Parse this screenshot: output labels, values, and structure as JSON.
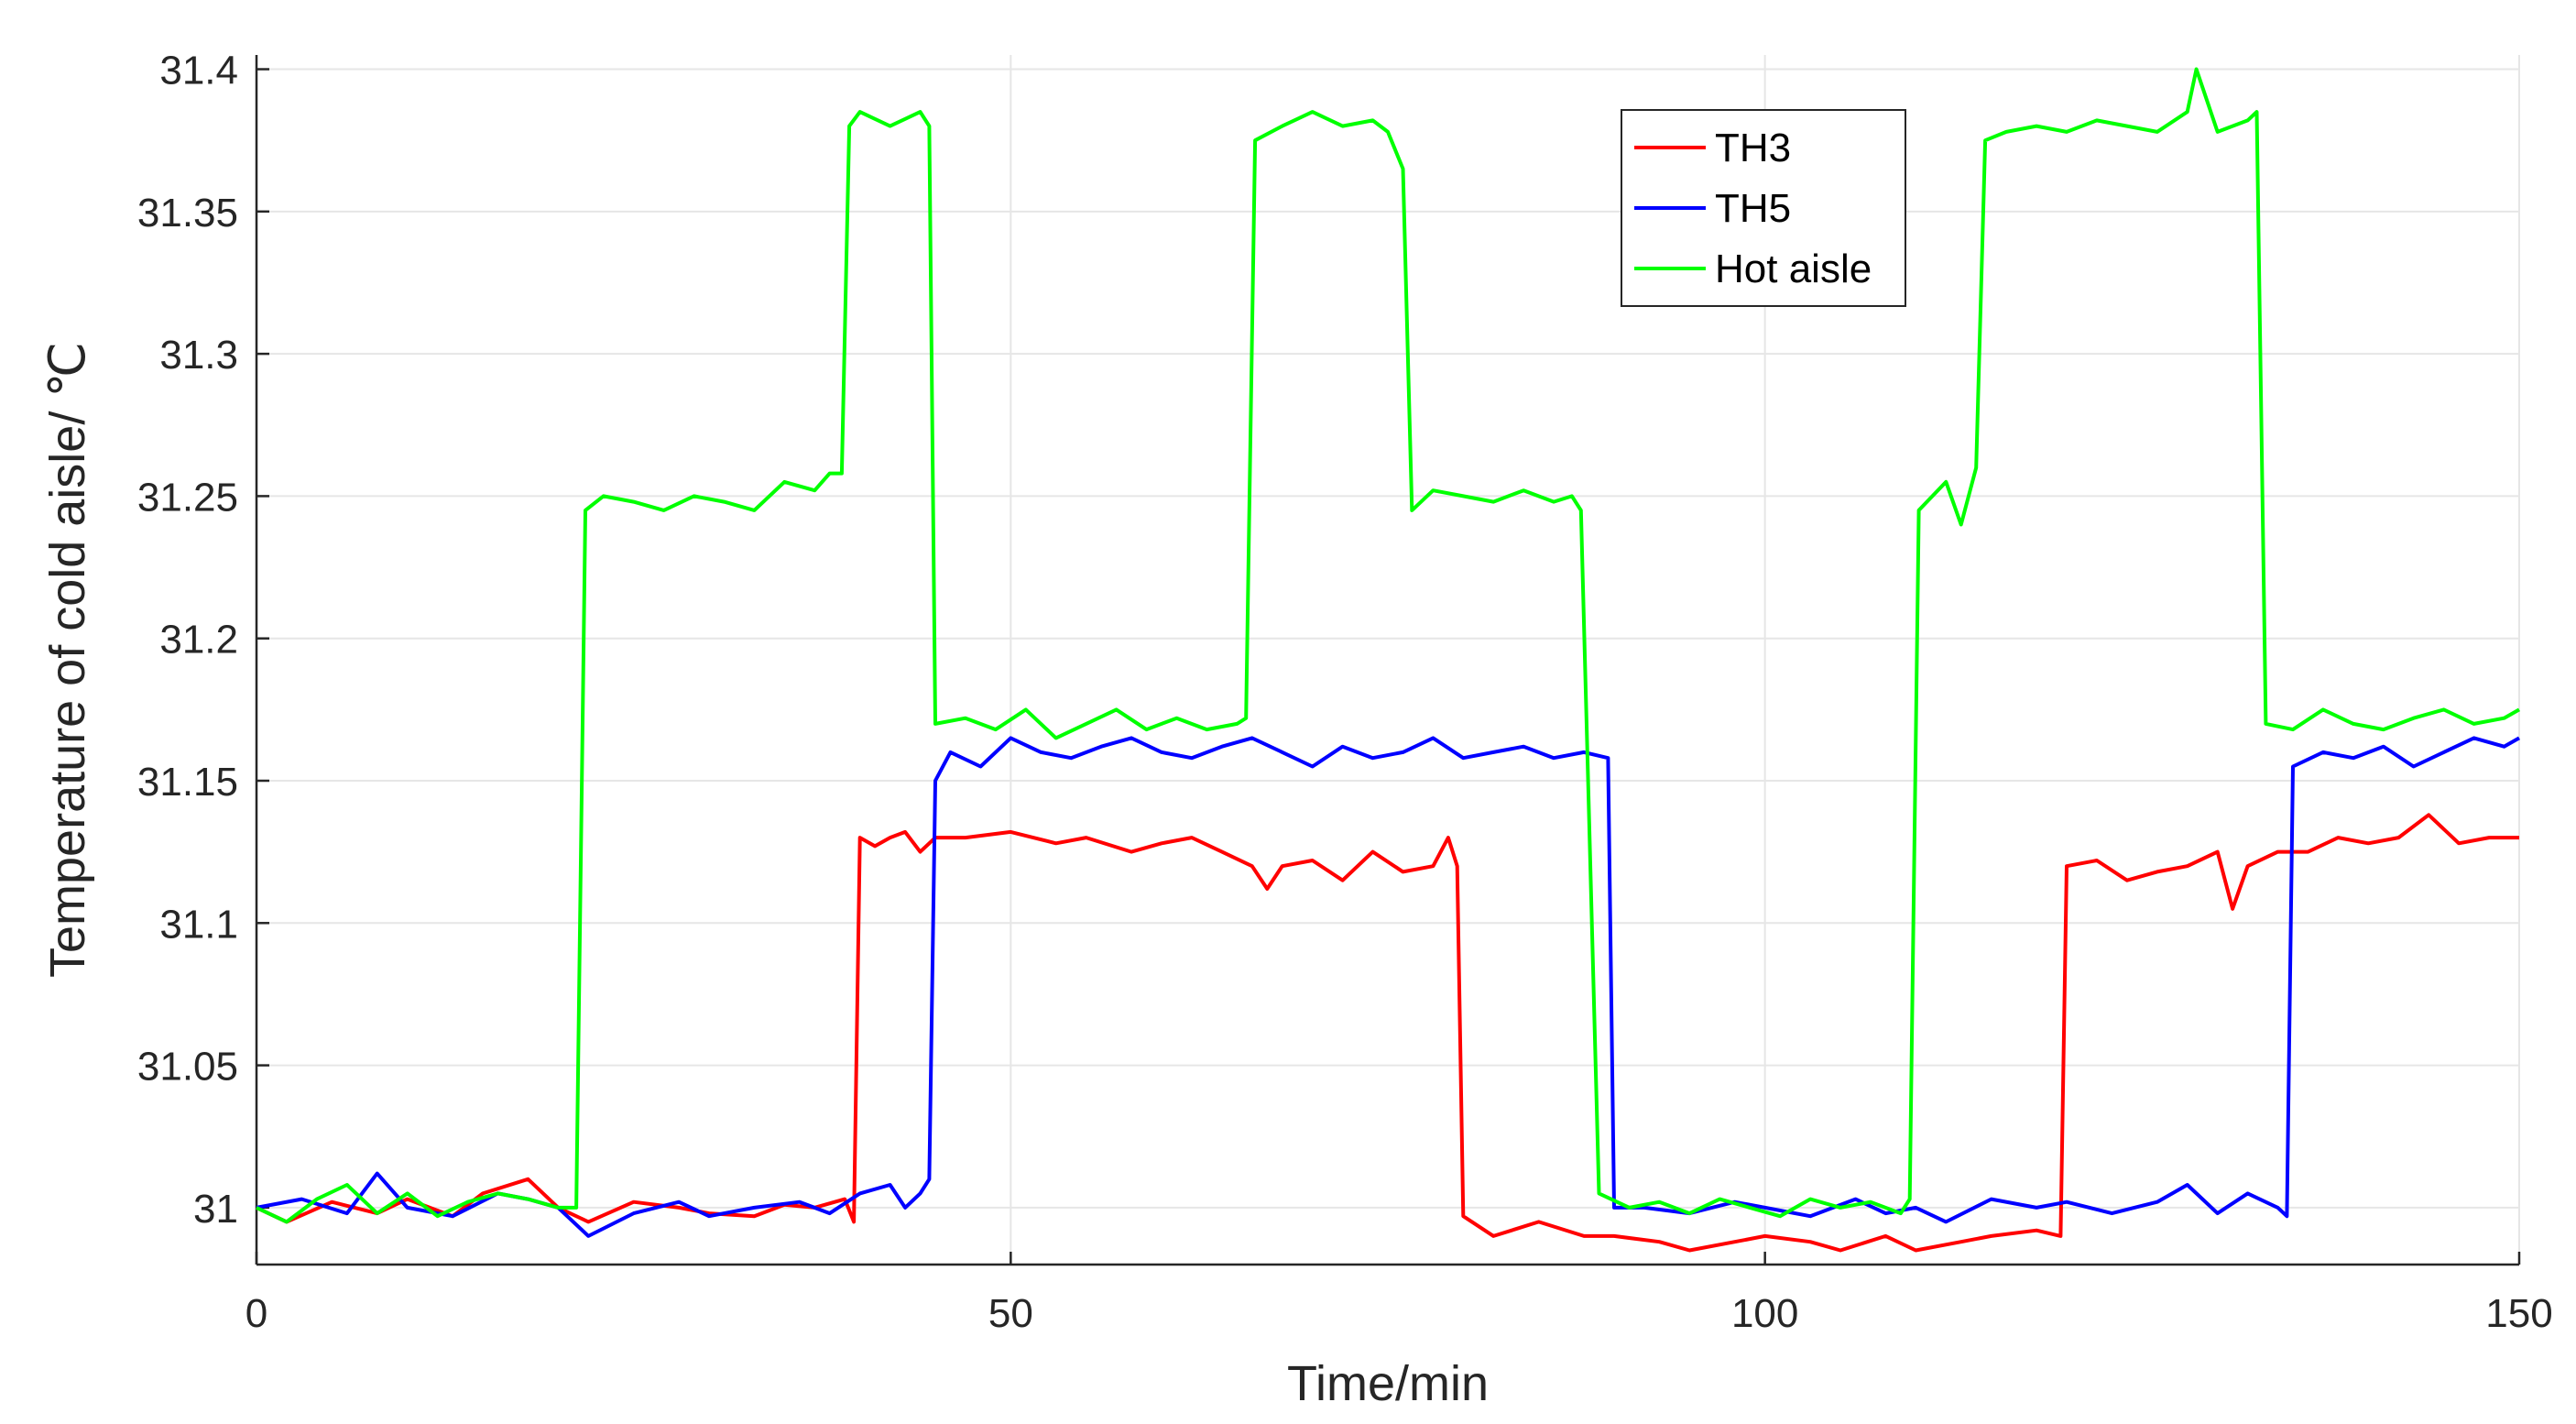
{
  "chart_data": {
    "type": "line",
    "title": "",
    "xlabel": "Time/min",
    "ylabel": "Temperature of cold aisle/ ℃",
    "xlim": [
      0,
      150
    ],
    "ylim": [
      30.98,
      31.405
    ],
    "xticks": [
      0,
      50,
      100,
      150
    ],
    "xtick_labels": [
      "0",
      "50",
      "100",
      "150"
    ],
    "yticks": [
      31,
      31.05,
      31.1,
      31.15,
      31.2,
      31.25,
      31.3,
      31.35,
      31.4
    ],
    "ytick_labels": [
      "31",
      "31.05",
      "31.1",
      "31.15",
      "31.2",
      "31.25",
      "31.3",
      "31.35",
      "31.4"
    ],
    "grid": true,
    "legend_position": "top-right",
    "series": [
      {
        "name": "TH3",
        "color": "#ff0000",
        "x": [
          0,
          2,
          5,
          8,
          10,
          13,
          15,
          18,
          20,
          22,
          25,
          28,
          30,
          33,
          35,
          37,
          39,
          39.6,
          40,
          41,
          42,
          43,
          44,
          45,
          47,
          50,
          53,
          55,
          58,
          60,
          62,
          64,
          66,
          67,
          68,
          70,
          72,
          74,
          76,
          78,
          79,
          79.6,
          80,
          82,
          85,
          88,
          90,
          93,
          95,
          98,
          100,
          103,
          105,
          108,
          110,
          113,
          115,
          118,
          119.6,
          120,
          122,
          124,
          126,
          128,
          130,
          131,
          132,
          134,
          136,
          138,
          140,
          142,
          144,
          146,
          148,
          150
        ],
        "values": [
          31.0,
          30.995,
          31.002,
          30.998,
          31.003,
          30.997,
          31.005,
          31.01,
          31.0,
          30.995,
          31.002,
          31.0,
          30.998,
          30.997,
          31.001,
          31.0,
          31.003,
          30.995,
          31.13,
          31.127,
          31.13,
          31.132,
          31.125,
          31.13,
          31.13,
          31.132,
          31.128,
          31.13,
          31.125,
          31.128,
          31.13,
          31.125,
          31.12,
          31.112,
          31.12,
          31.122,
          31.115,
          31.125,
          31.118,
          31.12,
          31.13,
          31.12,
          30.997,
          30.99,
          30.995,
          30.99,
          30.99,
          30.988,
          30.985,
          30.988,
          30.99,
          30.988,
          30.985,
          30.99,
          30.985,
          30.988,
          30.99,
          30.992,
          30.99,
          31.12,
          31.122,
          31.115,
          31.118,
          31.12,
          31.125,
          31.105,
          31.12,
          31.125,
          31.125,
          31.13,
          31.128,
          31.13,
          31.138,
          31.128,
          31.13,
          31.13
        ]
      },
      {
        "name": "TH5",
        "color": "#0000ff",
        "x": [
          0,
          3,
          6,
          8,
          10,
          13,
          16,
          18,
          20,
          22,
          25,
          28,
          30,
          33,
          36,
          38,
          40,
          42,
          43,
          44,
          44.6,
          45,
          46,
          48,
          50,
          52,
          54,
          56,
          58,
          60,
          62,
          64,
          66,
          68,
          70,
          72,
          74,
          76,
          78,
          80,
          82,
          84,
          86,
          88,
          89.6,
          90,
          92,
          95,
          98,
          100,
          103,
          106,
          108,
          110,
          112,
          115,
          118,
          120,
          123,
          126,
          128,
          130,
          132,
          134,
          134.6,
          135,
          137,
          139,
          141,
          143,
          145,
          147,
          149,
          150
        ],
        "values": [
          31.0,
          31.003,
          30.998,
          31.012,
          31.0,
          30.997,
          31.005,
          31.003,
          31.0,
          30.99,
          30.998,
          31.002,
          30.997,
          31.0,
          31.002,
          30.998,
          31.005,
          31.008,
          31.0,
          31.005,
          31.01,
          31.15,
          31.16,
          31.155,
          31.165,
          31.16,
          31.158,
          31.162,
          31.165,
          31.16,
          31.158,
          31.162,
          31.165,
          31.16,
          31.155,
          31.162,
          31.158,
          31.16,
          31.165,
          31.158,
          31.16,
          31.162,
          31.158,
          31.16,
          31.158,
          31.0,
          31.0,
          30.998,
          31.002,
          31.0,
          30.997,
          31.003,
          30.998,
          31.0,
          30.995,
          31.003,
          31.0,
          31.002,
          30.998,
          31.002,
          31.008,
          30.998,
          31.005,
          31.0,
          30.997,
          31.155,
          31.16,
          31.158,
          31.162,
          31.155,
          31.16,
          31.165,
          31.162,
          31.165
        ]
      },
      {
        "name": "Hot aisle",
        "color": "#00ff00",
        "x": [
          0,
          2,
          4,
          6,
          8,
          10,
          12,
          14,
          16,
          18,
          20,
          21.2,
          21.8,
          23,
          25,
          27,
          29,
          31,
          33,
          35,
          37,
          38,
          38.8,
          39.3,
          40,
          42,
          44,
          44.6,
          45,
          47,
          49,
          51,
          53,
          55,
          57,
          59,
          61,
          63,
          65,
          65.6,
          66.2,
          68,
          70,
          72,
          74,
          75,
          76,
          76.6,
          78,
          80,
          82,
          84,
          86,
          87.2,
          87.8,
          89,
          91,
          93,
          95,
          97,
          99,
          101,
          103,
          105,
          107,
          109,
          109.6,
          110.2,
          112,
          113,
          114,
          114.6,
          116,
          118,
          120,
          122,
          124,
          126,
          128,
          128.6,
          130,
          132,
          132.6,
          133.2,
          135,
          137,
          139,
          141,
          143,
          145,
          147,
          149,
          150
        ],
        "values": [
          31.0,
          30.995,
          31.003,
          31.008,
          30.998,
          31.005,
          30.997,
          31.002,
          31.005,
          31.003,
          31.0,
          31.0,
          31.245,
          31.25,
          31.248,
          31.245,
          31.25,
          31.248,
          31.245,
          31.255,
          31.252,
          31.258,
          31.258,
          31.38,
          31.385,
          31.38,
          31.385,
          31.38,
          31.17,
          31.172,
          31.168,
          31.175,
          31.165,
          31.17,
          31.175,
          31.168,
          31.172,
          31.168,
          31.17,
          31.172,
          31.375,
          31.38,
          31.385,
          31.38,
          31.382,
          31.378,
          31.365,
          31.245,
          31.252,
          31.25,
          31.248,
          31.252,
          31.248,
          31.25,
          31.245,
          31.005,
          31.0,
          31.002,
          30.998,
          31.003,
          31.0,
          30.997,
          31.003,
          31.0,
          31.002,
          30.998,
          31.003,
          31.245,
          31.255,
          31.24,
          31.26,
          31.375,
          31.378,
          31.38,
          31.378,
          31.382,
          31.38,
          31.378,
          31.385,
          31.4,
          31.378,
          31.382,
          31.385,
          31.17,
          31.168,
          31.175,
          31.17,
          31.168,
          31.172,
          31.175,
          31.17,
          31.172,
          31.175
        ]
      }
    ]
  }
}
